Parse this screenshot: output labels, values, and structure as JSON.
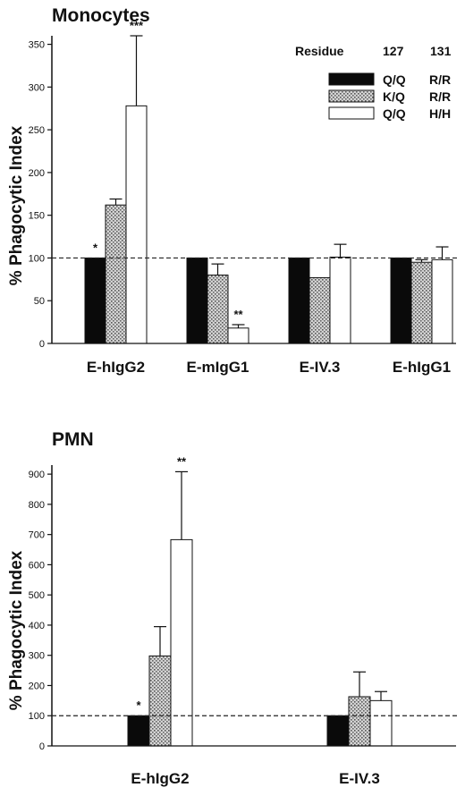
{
  "chart_data": [
    {
      "type": "bar",
      "title": "Monocytes",
      "ylabel": "% Phagocytic Index",
      "xlabel": "",
      "ylim": [
        0,
        360
      ],
      "yticks": [
        0,
        50,
        100,
        150,
        200,
        250,
        300,
        350
      ],
      "reference_line": 100,
      "categories": [
        "E-hIgG2",
        "E-mIgG1",
        "E-IV.3",
        "E-hIgG1"
      ],
      "series": [
        {
          "name": "Q/Q R/R",
          "values": [
            100,
            100,
            100,
            100
          ],
          "errors": [
            0,
            0,
            0,
            0
          ]
        },
        {
          "name": "K/Q R/R",
          "values": [
            162,
            80,
            77,
            95
          ],
          "errors": [
            7,
            13,
            0,
            3
          ]
        },
        {
          "name": "Q/Q H/H",
          "values": [
            278,
            18,
            101,
            98
          ],
          "errors": [
            82,
            4,
            15,
            15
          ]
        }
      ],
      "significance": [
        {
          "category": 0,
          "series": 0,
          "label": "*"
        },
        {
          "category": 0,
          "series": 2,
          "label": "***"
        },
        {
          "category": 1,
          "series": 2,
          "label": "**"
        }
      ],
      "legend": {
        "placement": "top-right",
        "header": {
          "residue": "Residue",
          "col1": "127",
          "col2": "131"
        },
        "rows": [
          {
            "col1": "Q/Q",
            "col2": "R/R"
          },
          {
            "col1": "K/Q",
            "col2": "R/R"
          },
          {
            "col1": "Q/Q",
            "col2": "H/H"
          }
        ]
      }
    },
    {
      "type": "bar",
      "title": "PMN",
      "ylabel": "% Phagocytic Index",
      "xlabel": "",
      "ylim": [
        0,
        930
      ],
      "yticks": [
        0,
        100,
        200,
        300,
        400,
        500,
        600,
        700,
        800,
        900
      ],
      "reference_line": 100,
      "categories": [
        "E-hIgG2",
        "E-IV.3"
      ],
      "series": [
        {
          "name": "Q/Q R/R",
          "values": [
            100,
            100
          ],
          "errors": [
            0,
            0
          ]
        },
        {
          "name": "K/Q R/R",
          "values": [
            298,
            163
          ],
          "errors": [
            97,
            82
          ]
        },
        {
          "name": "Q/Q H/H",
          "values": [
            683,
            150
          ],
          "errors": [
            225,
            30
          ]
        }
      ],
      "significance": [
        {
          "category": 0,
          "series": 0,
          "label": "*"
        },
        {
          "category": 0,
          "series": 2,
          "label": "**"
        }
      ]
    }
  ],
  "colors": {
    "series0": "#0a0a0a",
    "series1_hatch": "#8a8a8a",
    "series2": "#ffffff",
    "axis": "#111111"
  }
}
